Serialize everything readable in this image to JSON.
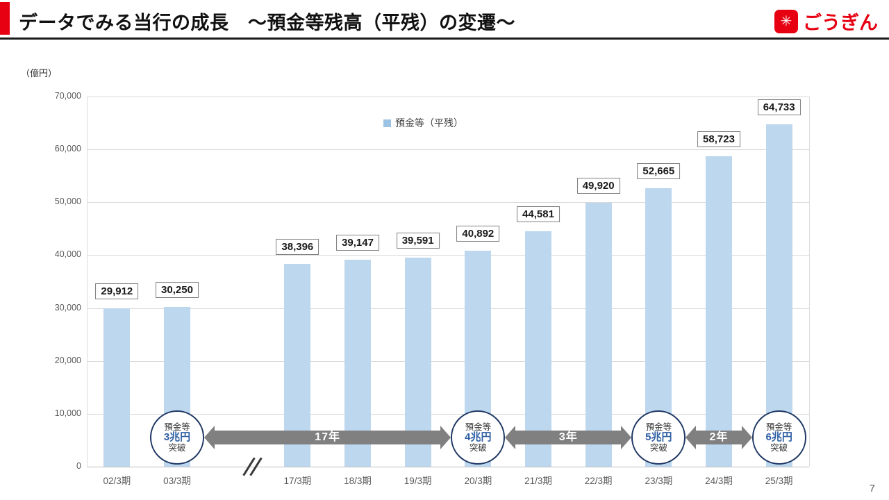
{
  "header": {
    "title": "データでみる当行の成長　～預金等残高（平残）の変遷～",
    "logo_text": "ごうぎん",
    "accent_color": "#e60012"
  },
  "page_number": "7",
  "chart_data": {
    "type": "bar",
    "title": "データでみる当行の成長 ～預金等残高（平残）の変遷～",
    "unit_label": "（億円）",
    "legend": "預金等（平残）",
    "ylabel": "（億円）",
    "ylim": [
      0,
      70000
    ],
    "yticks": [
      "0",
      "10,000",
      "20,000",
      "30,000",
      "40,000",
      "50,000",
      "60,000",
      "70,000"
    ],
    "grid": "horizontal",
    "legend_position": "top-center",
    "bar_color": "#bdd7ee",
    "arrow_color": "#808080",
    "milestone_border_color": "#1f3864",
    "milestone_amount_color": "#2e5fa3",
    "categories": [
      "02/3期",
      "03/3期",
      "",
      "17/3期",
      "18/3期",
      "19/3期",
      "20/3期",
      "21/3期",
      "22/3期",
      "23/3期",
      "24/3期",
      "25/3期"
    ],
    "values": [
      29912,
      30250,
      null,
      38396,
      39147,
      39591,
      40892,
      44581,
      49920,
      52665,
      58723,
      64733
    ],
    "value_labels": [
      "29,912",
      "30,250",
      null,
      "38,396",
      "39,147",
      "39,591",
      "40,892",
      "44,581",
      "49,920",
      "52,665",
      "58,723",
      "64,733"
    ],
    "axis_break_slot": 2,
    "milestones": [
      {
        "slot": 1,
        "line1": "預金等",
        "line2": "3兆円",
        "line3": "突破"
      },
      {
        "slot": 6,
        "line1": "預金等",
        "line2": "4兆円",
        "line3": "突破"
      },
      {
        "slot": 9,
        "line1": "預金等",
        "line2": "5兆円",
        "line3": "突破"
      },
      {
        "slot": 11,
        "line1": "預金等",
        "line2": "6兆円",
        "line3": "突破"
      }
    ],
    "arrows": [
      {
        "from_slot": 1,
        "to_slot": 6,
        "label": "17年"
      },
      {
        "from_slot": 6,
        "to_slot": 9,
        "label": "3年"
      },
      {
        "from_slot": 9,
        "to_slot": 11,
        "label": "2年"
      }
    ]
  }
}
